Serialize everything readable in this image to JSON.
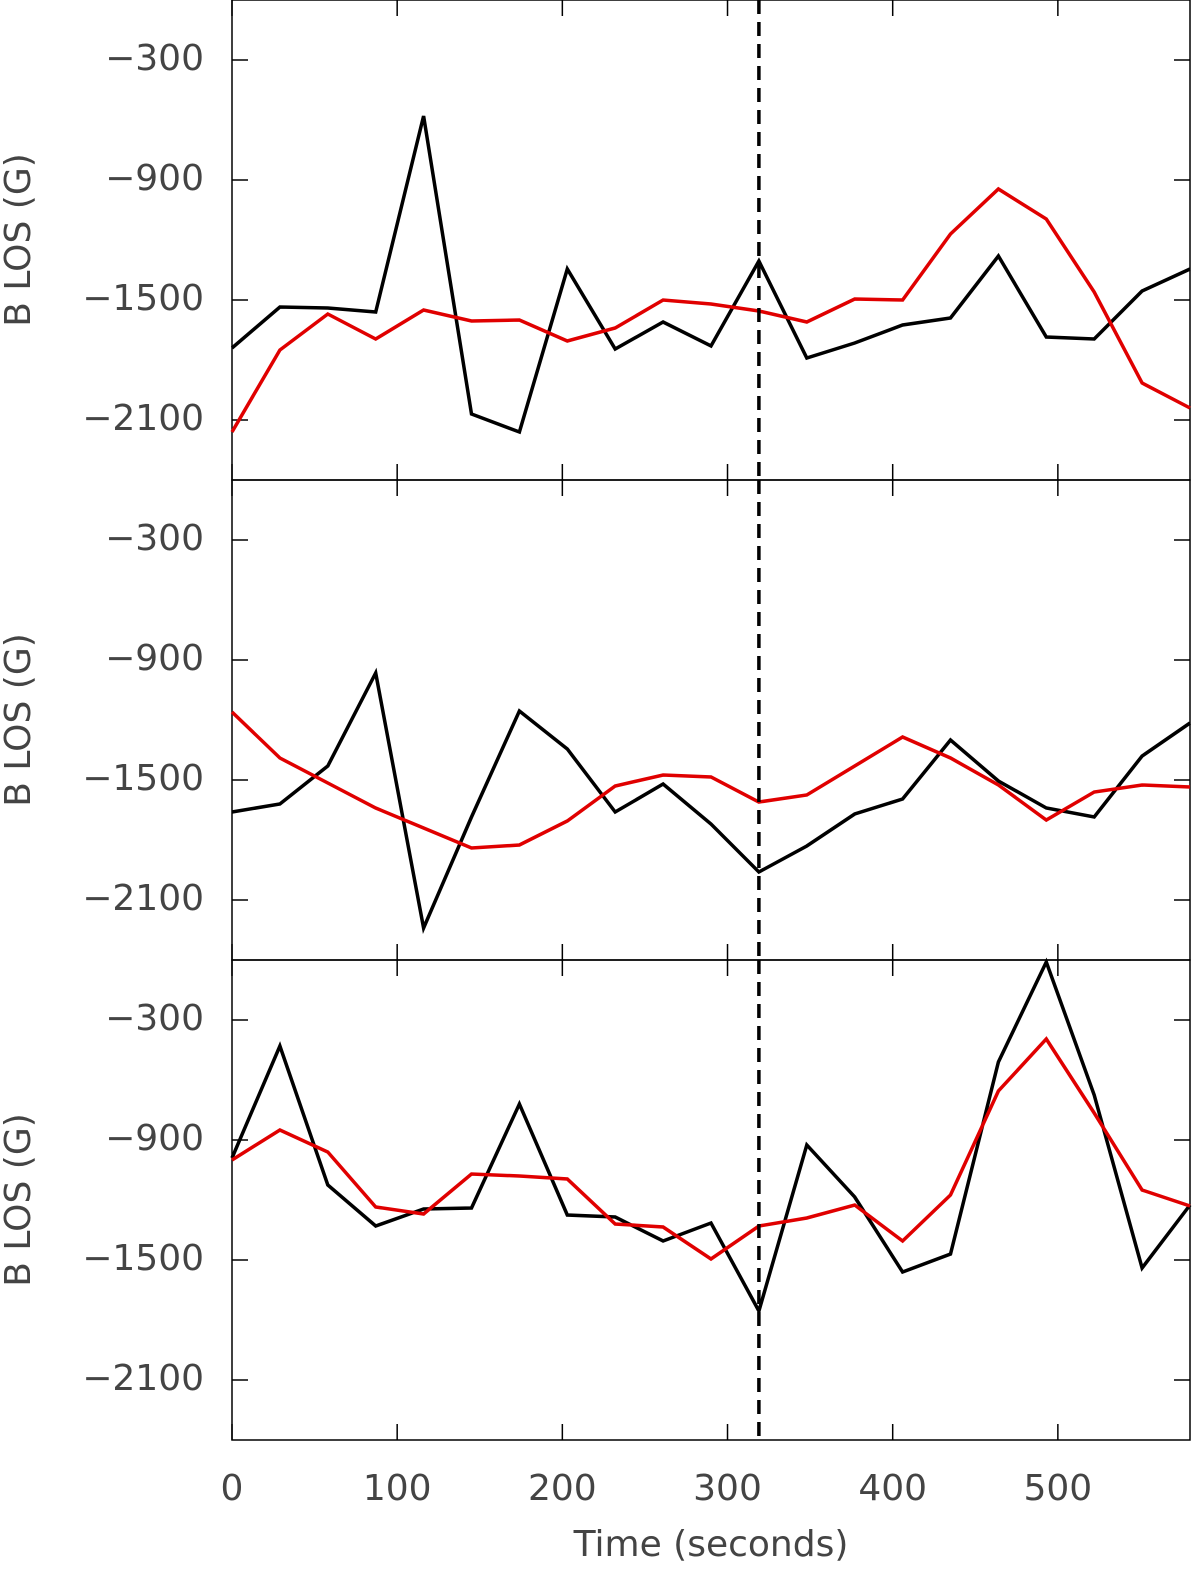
{
  "chart_data": [
    {
      "type": "line",
      "ylabel": "B LOS (G)",
      "x": [
        0,
        29,
        58,
        87,
        116,
        145,
        174,
        203,
        232,
        261,
        290,
        319,
        348,
        377,
        406,
        435,
        464,
        493,
        522,
        551,
        580
      ],
      "xlim": [
        0,
        580
      ],
      "xticks": [
        0,
        100,
        200,
        300,
        400,
        500
      ],
      "ylim": [
        -2400,
        0
      ],
      "yticks": [
        {
          "value": -300,
          "label": "−300"
        },
        {
          "value": -900,
          "label": "−900"
        },
        {
          "value": -1500,
          "label": "−1500"
        },
        {
          "value": -2100,
          "label": "−2100"
        }
      ],
      "vline_x": 319,
      "series": [
        {
          "color": "#000000",
          "values": [
            -1740,
            -1535,
            -1540,
            -1560,
            -580,
            -2070,
            -2160,
            -1345,
            -1745,
            -1610,
            -1730,
            -1305,
            -1790,
            -1715,
            -1625,
            -1590,
            -1280,
            -1685,
            -1695,
            -1455,
            -1345
          ]
        },
        {
          "color": "#e00000",
          "values": [
            -2160,
            -1750,
            -1570,
            -1695,
            -1550,
            -1605,
            -1600,
            -1705,
            -1640,
            -1500,
            -1520,
            -1555,
            -1610,
            -1495,
            -1500,
            -1170,
            -945,
            -1095,
            -1460,
            -1915,
            -2040
          ]
        }
      ]
    },
    {
      "type": "line",
      "ylabel": "B LOS (G)",
      "x": [
        0,
        29,
        58,
        87,
        116,
        145,
        174,
        203,
        232,
        261,
        290,
        319,
        348,
        377,
        406,
        435,
        464,
        493,
        522,
        551,
        580
      ],
      "xlim": [
        0,
        580
      ],
      "xticks": [
        0,
        100,
        200,
        300,
        400,
        500
      ],
      "ylim": [
        -2400,
        0
      ],
      "yticks": [
        {
          "value": -300,
          "label": "−300"
        },
        {
          "value": -900,
          "label": "−900"
        },
        {
          "value": -1500,
          "label": "−1500"
        },
        {
          "value": -2100,
          "label": "−2100"
        }
      ],
      "vline_x": 319,
      "series": [
        {
          "color": "#000000",
          "values": [
            -1660,
            -1620,
            -1430,
            -965,
            -2240,
            -1685,
            -1155,
            -1345,
            -1660,
            -1520,
            -1720,
            -1960,
            -1830,
            -1670,
            -1595,
            -1300,
            -1505,
            -1640,
            -1685,
            -1380,
            -1215
          ]
        },
        {
          "color": "#e00000",
          "values": [
            -1160,
            -1390,
            -1515,
            -1640,
            -1740,
            -1840,
            -1825,
            -1705,
            -1530,
            -1475,
            -1485,
            -1610,
            -1575,
            -1430,
            -1285,
            -1390,
            -1525,
            -1700,
            -1560,
            -1525,
            -1535
          ]
        }
      ]
    },
    {
      "type": "line",
      "ylabel": "B LOS (G)",
      "xlabel": "Time (seconds)",
      "x": [
        0,
        29,
        58,
        87,
        116,
        145,
        174,
        203,
        232,
        261,
        290,
        319,
        348,
        377,
        406,
        435,
        464,
        493,
        522,
        551,
        580
      ],
      "xlim": [
        0,
        580
      ],
      "xticks": [
        0,
        100,
        200,
        300,
        400,
        500
      ],
      "ylim": [
        -2400,
        0
      ],
      "yticks": [
        {
          "value": -300,
          "label": "−300"
        },
        {
          "value": -900,
          "label": "−900"
        },
        {
          "value": -1500,
          "label": "−1500"
        },
        {
          "value": -2100,
          "label": "−2100"
        }
      ],
      "vline_x": 319,
      "series": [
        {
          "color": "#000000",
          "values": [
            -990,
            -430,
            -1125,
            -1330,
            -1245,
            -1240,
            -720,
            -1275,
            -1285,
            -1405,
            -1315,
            -1755,
            -925,
            -1185,
            -1560,
            -1470,
            -510,
            -10,
            -675,
            -1540,
            -1225
          ]
        },
        {
          "color": "#e00000",
          "values": [
            -1000,
            -850,
            -960,
            -1235,
            -1270,
            -1070,
            -1080,
            -1095,
            -1320,
            -1335,
            -1495,
            -1330,
            -1290,
            -1225,
            -1405,
            -1175,
            -655,
            -395,
            -765,
            -1150,
            -1230
          ]
        }
      ]
    }
  ]
}
